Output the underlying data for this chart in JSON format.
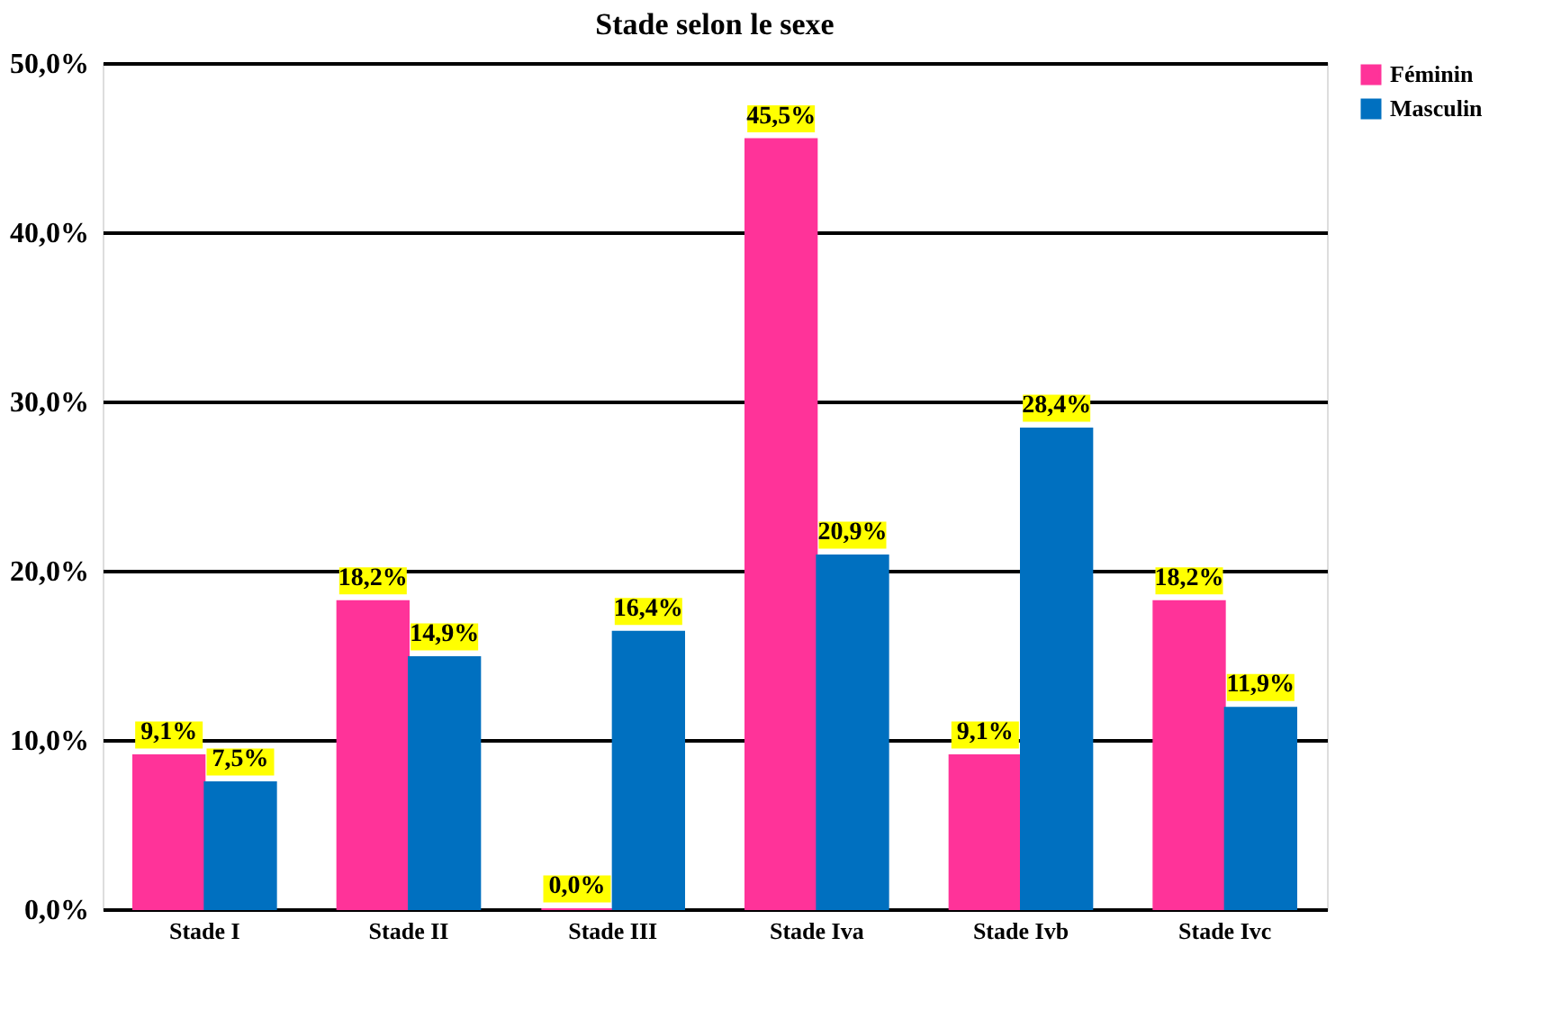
{
  "chart_data": {
    "type": "bar",
    "title": "Stade selon le sexe",
    "categories": [
      "Stade I",
      "Stade II",
      "Stade III",
      "Stade Iva",
      "Stade Ivb",
      "Stade Ivc"
    ],
    "series": [
      {
        "name": "Féminin",
        "color": "#ff3399",
        "values": [
          9.1,
          18.2,
          0.0,
          45.5,
          9.1,
          18.2
        ],
        "value_labels": [
          "9,1%",
          "18,2%",
          "0,0%",
          "45,5%",
          "9,1%",
          "18,2%"
        ]
      },
      {
        "name": "Masculin",
        "color": "#0070c0",
        "values": [
          7.5,
          14.9,
          16.4,
          20.9,
          28.4,
          11.9
        ],
        "value_labels": [
          "7,5%",
          "14,9%",
          "16,4%",
          "20,9%",
          "28,4%",
          "11,9%"
        ]
      }
    ],
    "ylim": [
      0,
      50
    ],
    "yticks": [
      {
        "value": 0,
        "label": "0,0%"
      },
      {
        "value": 10,
        "label": "10,0%"
      },
      {
        "value": 20,
        "label": "20,0%"
      },
      {
        "value": 30,
        "label": "30,0%"
      },
      {
        "value": 40,
        "label": "40,0%"
      },
      {
        "value": 50,
        "label": "50,0%"
      }
    ],
    "grid": "y",
    "legend": "right"
  }
}
